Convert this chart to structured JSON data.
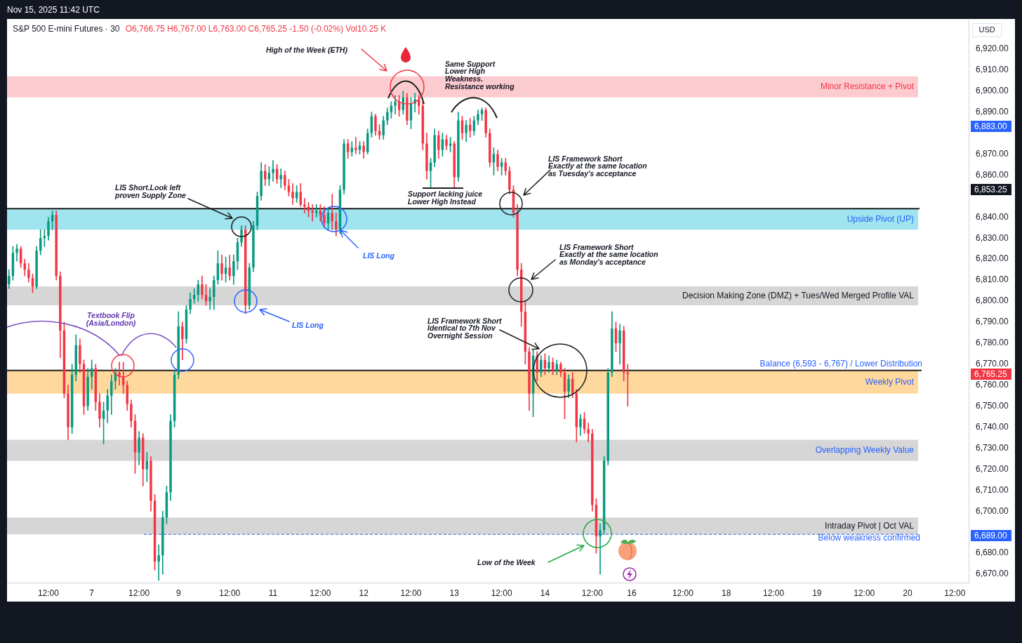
{
  "chart_data": {
    "type": "candlestick",
    "title": "S&P 500 E-mini Futures · 30",
    "subtitle": "O6,766.75 H6,767.00 L6,763.00 C6,765.25 -1.50 (-0.02%) Vol10.25 K",
    "ylabel": "USD",
    "categories": [
      null,
      null,
      null,
      null,
      null,
      null,
      null,
      null,
      null,
      null,
      "12:00",
      null,
      null,
      null,
      null,
      null,
      null,
      null,
      null,
      null,
      null,
      "7",
      null,
      null,
      null,
      null,
      null,
      null,
      null,
      null,
      null,
      null,
      null,
      "12:00",
      null,
      null,
      null,
      null,
      null,
      null,
      null,
      null,
      null,
      "9",
      null,
      null,
      null,
      null,
      null,
      null,
      null,
      null,
      null,
      null,
      null,
      null,
      "12:00",
      null,
      null,
      null,
      null,
      null,
      null,
      null,
      null,
      null,
      null,
      "11",
      null,
      null,
      null,
      null,
      null,
      null,
      null,
      null,
      null,
      null,
      null,
      "12:00",
      null,
      null,
      null,
      null,
      null,
      null,
      null,
      null,
      null,
      null,
      "12",
      null,
      null,
      null,
      null,
      null,
      null,
      null,
      null,
      null,
      null,
      null,
      "12:00",
      null,
      null,
      null,
      null,
      null,
      null,
      null,
      null,
      null,
      null,
      "13",
      null,
      null,
      null,
      null,
      null,
      null,
      null,
      null,
      null,
      null,
      null,
      "12:00",
      null,
      null,
      null,
      null,
      null,
      null,
      null,
      null,
      null,
      null,
      "14",
      null,
      null,
      null,
      null,
      null,
      null,
      null,
      null,
      null,
      null,
      null,
      "12:00",
      null,
      null,
      null,
      null,
      null,
      null,
      null,
      null,
      null,
      "16",
      null,
      null,
      null,
      null,
      null,
      null,
      null,
      null,
      null,
      null,
      null,
      null,
      "12:00",
      null,
      null,
      null,
      null,
      null,
      null,
      null,
      null,
      null,
      null,
      "18",
      null,
      null,
      null,
      null,
      null,
      null,
      null,
      null,
      null,
      null,
      null,
      "12:00",
      null,
      null,
      null,
      null,
      null,
      null,
      null,
      null,
      null,
      null,
      "19",
      null,
      null,
      null,
      null,
      null,
      null,
      null,
      null,
      null,
      null,
      null,
      "12:00",
      null,
      null,
      null,
      null,
      null,
      null,
      null,
      null,
      null,
      null,
      "20",
      null,
      null,
      null,
      null,
      null,
      null,
      null,
      null,
      null,
      null,
      null,
      "12:00",
      null,
      null,
      null
    ],
    "ohlc": [
      [
        6808,
        6815,
        6806,
        6812
      ],
      [
        6812,
        6826,
        6810,
        6823
      ],
      [
        6823,
        6827,
        6819,
        6825
      ],
      [
        6825,
        6826,
        6816,
        6818
      ],
      [
        6818,
        6820,
        6812,
        6815
      ],
      [
        6815,
        6818,
        6809,
        6811
      ],
      [
        6811,
        6813,
        6804,
        6807
      ],
      [
        6807,
        6826,
        6806,
        6824
      ],
      [
        6824,
        6834,
        6822,
        6830
      ],
      [
        6830,
        6834,
        6826,
        6831
      ],
      [
        6831,
        6840,
        6829,
        6838
      ],
      [
        6838,
        6843,
        6834,
        6841
      ],
      [
        6841,
        6843,
        6810,
        6812
      ],
      [
        6812,
        6814,
        6773,
        6786
      ],
      [
        6786,
        6790,
        6754,
        6756
      ],
      [
        6756,
        6760,
        6734,
        6740
      ],
      [
        6740,
        6770,
        6737,
        6765
      ],
      [
        6765,
        6784,
        6762,
        6779
      ],
      [
        6779,
        6782,
        6766,
        6770
      ],
      [
        6770,
        6772,
        6746,
        6750
      ],
      [
        6750,
        6768,
        6748,
        6764
      ],
      [
        6764,
        6772,
        6758,
        6768
      ],
      [
        6768,
        6770,
        6748,
        6752
      ],
      [
        6752,
        6756,
        6740,
        6744
      ],
      [
        6744,
        6752,
        6732,
        6748
      ],
      [
        6748,
        6758,
        6742,
        6755
      ],
      [
        6755,
        6765,
        6746,
        6762
      ],
      [
        6762,
        6768,
        6758,
        6766
      ],
      [
        6766,
        6771,
        6760,
        6764
      ],
      [
        6764,
        6771,
        6756,
        6760
      ],
      [
        6760,
        6762,
        6748,
        6751
      ],
      [
        6751,
        6753,
        6740,
        6743
      ],
      [
        6743,
        6746,
        6718,
        6728
      ],
      [
        6728,
        6738,
        6722,
        6735
      ],
      [
        6735,
        6737,
        6712,
        6720
      ],
      [
        6720,
        6728,
        6714,
        6724
      ],
      [
        6724,
        6726,
        6700,
        6705
      ],
      [
        6705,
        6708,
        6672,
        6676
      ],
      [
        6676,
        6684,
        6667,
        6679
      ],
      [
        6679,
        6700,
        6670,
        6697
      ],
      [
        6697,
        6712,
        6694,
        6709
      ],
      [
        6709,
        6746,
        6705,
        6743
      ],
      [
        6743,
        6767,
        6740,
        6765
      ],
      [
        6765,
        6795,
        6763,
        6788
      ],
      [
        6788,
        6790,
        6772,
        6782
      ],
      [
        6782,
        6798,
        6780,
        6796
      ],
      [
        6796,
        6804,
        6794,
        6801
      ],
      [
        6801,
        6806,
        6799,
        6803
      ],
      [
        6803,
        6810,
        6800,
        6808
      ],
      [
        6808,
        6812,
        6801,
        6803
      ],
      [
        6803,
        6808,
        6798,
        6800
      ],
      [
        6800,
        6806,
        6796,
        6802
      ],
      [
        6802,
        6812,
        6796,
        6810
      ],
      [
        6810,
        6824,
        6808,
        6818
      ],
      [
        6818,
        6822,
        6810,
        6813
      ],
      [
        6813,
        6821,
        6809,
        6816
      ],
      [
        6816,
        6822,
        6810,
        6812
      ],
      [
        6812,
        6822,
        6808,
        6819
      ],
      [
        6819,
        6830,
        6815,
        6828
      ],
      [
        6828,
        6836,
        6826,
        6834
      ],
      [
        6834,
        6836,
        6794,
        6798
      ],
      [
        6798,
        6818,
        6796,
        6816
      ],
      [
        6816,
        6838,
        6814,
        6836
      ],
      [
        6836,
        6852,
        6834,
        6850
      ],
      [
        6850,
        6866,
        6848,
        6862
      ],
      [
        6862,
        6865,
        6855,
        6858
      ],
      [
        6858,
        6864,
        6855,
        6861
      ],
      [
        6861,
        6867,
        6857,
        6863
      ],
      [
        6863,
        6865,
        6856,
        6858
      ],
      [
        6858,
        6863,
        6854,
        6860
      ],
      [
        6860,
        6862,
        6853,
        6855
      ],
      [
        6855,
        6858,
        6850,
        6852
      ],
      [
        6852,
        6856,
        6846,
        6849
      ],
      [
        6849,
        6855,
        6847,
        6852
      ],
      [
        6852,
        6856,
        6845,
        6846
      ],
      [
        6846,
        6849,
        6842,
        6845
      ],
      [
        6845,
        6847,
        6840,
        6843
      ],
      [
        6843,
        6846,
        6838,
        6842
      ],
      [
        6842,
        6846,
        6840,
        6843
      ],
      [
        6843,
        6846,
        6838,
        6841
      ],
      [
        6841,
        6845,
        6835,
        6837
      ],
      [
        6837,
        6844,
        6834,
        6842
      ],
      [
        6842,
        6851,
        6834,
        6838
      ],
      [
        6838,
        6842,
        6831,
        6834
      ],
      [
        6834,
        6855,
        6832,
        6853
      ],
      [
        6853,
        6877,
        6851,
        6875
      ],
      [
        6875,
        6877,
        6868,
        6871
      ],
      [
        6871,
        6876,
        6869,
        6873
      ],
      [
        6873,
        6878,
        6870,
        6872
      ],
      [
        6872,
        6876,
        6870,
        6874
      ],
      [
        6874,
        6876,
        6868,
        6871
      ],
      [
        6871,
        6882,
        6870,
        6880
      ],
      [
        6880,
        6890,
        6878,
        6888
      ],
      [
        6888,
        6889,
        6879,
        6881
      ],
      [
        6881,
        6884,
        6877,
        6879
      ],
      [
        6879,
        6888,
        6877,
        6886
      ],
      [
        6886,
        6892,
        6884,
        6890
      ],
      [
        6890,
        6895,
        6887,
        6893
      ],
      [
        6893,
        6898,
        6889,
        6895
      ],
      [
        6895,
        6898,
        6888,
        6891
      ],
      [
        6891,
        6900,
        6889,
        6897
      ],
      [
        6897,
        6899,
        6884,
        6886
      ],
      [
        6886,
        6897,
        6882,
        6894
      ],
      [
        6894,
        6899,
        6890,
        6896
      ],
      [
        6896,
        6898,
        6889,
        6893
      ],
      [
        6893,
        6895,
        6872,
        6875
      ],
      [
        6875,
        6880,
        6858,
        6862
      ],
      [
        6862,
        6868,
        6854,
        6866
      ],
      [
        6866,
        6882,
        6864,
        6879
      ],
      [
        6879,
        6881,
        6868,
        6872
      ],
      [
        6872,
        6880,
        6869,
        6877
      ],
      [
        6877,
        6879,
        6872,
        6874
      ],
      [
        6874,
        6878,
        6871,
        6875
      ],
      [
        6875,
        6876,
        6854,
        6859
      ],
      [
        6859,
        6890,
        6857,
        6886
      ],
      [
        6886,
        6888,
        6877,
        6880
      ],
      [
        6880,
        6886,
        6876,
        6884
      ],
      [
        6884,
        6887,
        6878,
        6881
      ],
      [
        6881,
        6888,
        6879,
        6886
      ],
      [
        6886,
        6891,
        6884,
        6889
      ],
      [
        6889,
        6892,
        6886,
        6891
      ],
      [
        6891,
        6892,
        6878,
        6880
      ],
      [
        6880,
        6882,
        6864,
        6866
      ],
      [
        6866,
        6873,
        6860,
        6870
      ],
      [
        6870,
        6872,
        6862,
        6864
      ],
      [
        6864,
        6868,
        6860,
        6866
      ],
      [
        6866,
        6868,
        6860,
        6862
      ],
      [
        6862,
        6864,
        6851,
        6853
      ],
      [
        6853,
        6855,
        6840,
        6842
      ],
      [
        6842,
        6846,
        6812,
        6815
      ],
      [
        6815,
        6818,
        6788,
        6795
      ],
      [
        6795,
        6800,
        6770,
        6776
      ],
      [
        6776,
        6778,
        6748,
        6756
      ],
      [
        6756,
        6777,
        6745,
        6774
      ],
      [
        6774,
        6776,
        6762,
        6766
      ],
      [
        6766,
        6774,
        6764,
        6772
      ],
      [
        6772,
        6775,
        6765,
        6768
      ],
      [
        6768,
        6774,
        6766,
        6771
      ],
      [
        6771,
        6773,
        6765,
        6767
      ],
      [
        6767,
        6772,
        6765,
        6770
      ],
      [
        6770,
        6771,
        6764,
        6766
      ],
      [
        6766,
        6768,
        6744,
        6757
      ],
      [
        6757,
        6765,
        6754,
        6763
      ],
      [
        6763,
        6766,
        6754,
        6756
      ],
      [
        6756,
        6758,
        6733,
        6740
      ],
      [
        6740,
        6746,
        6736,
        6744
      ],
      [
        6744,
        6747,
        6737,
        6739
      ],
      [
        6739,
        6742,
        6733,
        6737
      ],
      [
        6737,
        6739,
        6700,
        6703
      ],
      [
        6703,
        6706,
        6680,
        6688
      ],
      [
        6688,
        6694,
        6670,
        6691
      ],
      [
        6691,
        6726,
        6689,
        6724
      ],
      [
        6724,
        6768,
        6722,
        6766
      ],
      [
        6766,
        6795,
        6764,
        6787
      ],
      [
        6787,
        6790,
        6776,
        6780
      ],
      [
        6780,
        6789,
        6770,
        6786
      ],
      [
        6786,
        6788,
        6762,
        6766
      ],
      [
        6766,
        6770,
        6750,
        6765.25
      ],
      null,
      null,
      null,
      null,
      null,
      null,
      null,
      null,
      null,
      null,
      null,
      null,
      null,
      null,
      null,
      null,
      null,
      null,
      null,
      null,
      null,
      null,
      null,
      null,
      null,
      null,
      null,
      null,
      null,
      null,
      null,
      null,
      null,
      null,
      null,
      null,
      null,
      null,
      null,
      null,
      null,
      null,
      null,
      null,
      null,
      null,
      null,
      null,
      null,
      null,
      null,
      null,
      null,
      null,
      null,
      null,
      null,
      null,
      null,
      null,
      null,
      null,
      null,
      null,
      null,
      null,
      null,
      null,
      null,
      null,
      null,
      null,
      null,
      null,
      null,
      null,
      null,
      null,
      null,
      null,
      null,
      null,
      null,
      null,
      null,
      null
    ],
    "ylim": [
      6666,
      6934
    ],
    "yticks": [
      {
        "value": 6670,
        "label": "6,670.00"
      },
      {
        "value": 6680,
        "label": "6,680.00"
      },
      {
        "value": 6700,
        "label": "6,700.00"
      },
      {
        "value": 6710,
        "label": "6,710.00"
      },
      {
        "value": 6720,
        "label": "6,720.00"
      },
      {
        "value": 6730,
        "label": "6,730.00"
      },
      {
        "value": 6740,
        "label": "6,740.00"
      },
      {
        "value": 6750,
        "label": "6,750.00"
      },
      {
        "value": 6760,
        "label": "6,760.00"
      },
      {
        "value": 6770,
        "label": "6,770.00"
      },
      {
        "value": 6780,
        "label": "6,780.00"
      },
      {
        "value": 6790,
        "label": "6,790.00"
      },
      {
        "value": 6800,
        "label": "6,800.00"
      },
      {
        "value": 6810,
        "label": "6,810.00"
      },
      {
        "value": 6820,
        "label": "6,820.00"
      },
      {
        "value": 6830,
        "label": "6,830.00"
      },
      {
        "value": 6840,
        "label": "6,840.00"
      },
      {
        "value": 6860,
        "label": "6,860.00"
      },
      {
        "value": 6870,
        "label": "6,870.00"
      },
      {
        "value": 6890,
        "label": "6,890.00"
      },
      {
        "value": 6900,
        "label": "6,900.00"
      },
      {
        "value": 6910,
        "label": "6,910.00"
      },
      {
        "value": 6920,
        "label": "6,920.00"
      }
    ],
    "bands": [
      {
        "axis": "y",
        "from": 6897,
        "to": 6907,
        "label": "Minor Resistance + Pivot",
        "color": "#fccbcf"
      },
      {
        "axis": "y",
        "from": 6834,
        "to": 6844,
        "label": "Upside Pivot (UP)",
        "color": "#9fe4ee"
      },
      {
        "axis": "y",
        "from": 6798,
        "to": 6807,
        "label": "Decision Making Zone (DMZ) + Tues/Wed Merged Profile VAL",
        "color": "#d6d6d6"
      },
      {
        "axis": "y",
        "from": 6756,
        "to": 6767,
        "label": "Weekly Pivot",
        "color": "#fed89d"
      },
      {
        "axis": "y",
        "from": 6724,
        "to": 6734,
        "label": "Overlapping Weekly Value",
        "color": "#d6d6d6"
      },
      {
        "axis": "y",
        "from": 6689,
        "to": 6697,
        "label": "Intraday Pivot | Oct VAL",
        "color": "#d6d6d6"
      }
    ],
    "ref_lines": [
      {
        "axis": "y",
        "value": 6844,
        "color": "#1e1e1e"
      },
      {
        "axis": "y",
        "value": 6767,
        "label": "Balance (6,593 - 6,767) / Lower Distribution",
        "color": "#1e1e1e"
      },
      {
        "axis": "y",
        "value": 6689,
        "label": "Below weakness confirmed",
        "color": "#2962ff",
        "line_style": "dashed"
      }
    ],
    "annotations": [
      "Nov 15, 2025 11:42 UTC",
      "6,883.00",
      "6,853.25",
      "6,765.25",
      "6,689.00",
      "High of the Week (ETH)",
      "Same Support\nLower High\nWeakness.\nResistance working",
      "Support lacking juice\nLower High Instead",
      "LIS Framework Short\nExactly at the same location\nas Tuesday's acceptance",
      "LIS Short.Look left\nproven Supply Zone",
      "LIS Long",
      "LIS Framework Short\nExactly at the same location\nas Monday's acceptance",
      "LIS Long",
      "Textbook Flip\n(Asia/London)",
      "LIS Framework Short\nIdentical to 7th Nov\nOvernight Session",
      "Low of the Week"
    ],
    "grid": false,
    "legend": false
  }
}
